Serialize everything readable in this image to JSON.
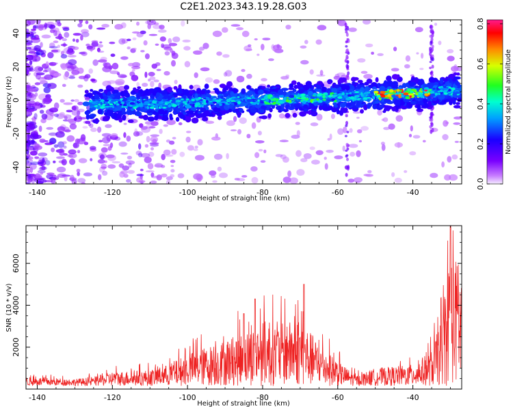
{
  "title": "C2E1.2023.343.19.28.G03",
  "colors": {
    "snr_line": "#ee2222",
    "axis": "#000000"
  },
  "chart_data": [
    {
      "type": "heatmap",
      "title": "C2E1.2023.343.19.28.G03",
      "xlabel": "Height of straight line (km)",
      "ylabel": "Frequency (Hz)",
      "xlim": [
        -143,
        -27
      ],
      "ylim": [
        -50,
        48
      ],
      "x_ticks": [
        -140,
        -120,
        -100,
        -80,
        -60,
        -40
      ],
      "y_ticks": [
        -40,
        -20,
        0,
        20,
        40
      ],
      "colormap": "rainbow (white/lavender at 0 → violet → blue → cyan → green → yellow → orange → red → magenta)",
      "colorbar": {
        "label": "Normalized spectral amplitude",
        "range": [
          0.0,
          0.82
        ],
        "ticks": [
          0.0,
          0.2,
          0.4,
          0.6,
          0.8
        ]
      },
      "ridge": [
        {
          "x": -126,
          "y": -3
        },
        {
          "x": -120,
          "y": -2
        },
        {
          "x": -110,
          "y": -2
        },
        {
          "x": -100,
          "y": -2
        },
        {
          "x": -90,
          "y": 0
        },
        {
          "x": -80,
          "y": 0
        },
        {
          "x": -70,
          "y": 1
        },
        {
          "x": -60,
          "y": 2
        },
        {
          "x": -50,
          "y": 3
        },
        {
          "x": -40,
          "y": 4
        },
        {
          "x": -28,
          "y": 6
        }
      ],
      "peak_region": {
        "x": [
          -50,
          -35
        ],
        "y": [
          3,
          5
        ],
        "amplitude": 0.8
      },
      "grid": false
    },
    {
      "type": "line",
      "xlabel": "Height of straight line (km)",
      "ylabel": "SNR (10 * v/v)",
      "xlim": [
        -143,
        -27
      ],
      "ylim": [
        0,
        7800
      ],
      "x_ticks": [
        -140,
        -120,
        -100,
        -80,
        -60,
        -40
      ],
      "y_ticks": [
        2000,
        4000,
        6000
      ],
      "envelope": [
        {
          "x": -143,
          "y": 500
        },
        {
          "x": -130,
          "y": 400
        },
        {
          "x": -125,
          "y": 500
        },
        {
          "x": -120,
          "y": 800
        },
        {
          "x": -110,
          "y": 900
        },
        {
          "x": -105,
          "y": 1200
        },
        {
          "x": -100,
          "y": 1800
        },
        {
          "x": -95,
          "y": 2200
        },
        {
          "x": -90,
          "y": 2600
        },
        {
          "x": -85,
          "y": 3000
        },
        {
          "x": -80,
          "y": 3600
        },
        {
          "x": -75,
          "y": 3500
        },
        {
          "x": -70,
          "y": 3800
        },
        {
          "x": -65,
          "y": 2400
        },
        {
          "x": -60,
          "y": 1400
        },
        {
          "x": -55,
          "y": 600
        },
        {
          "x": -50,
          "y": 1000
        },
        {
          "x": -45,
          "y": 1100
        },
        {
          "x": -40,
          "y": 1200
        },
        {
          "x": -35,
          "y": 2000
        },
        {
          "x": -32,
          "y": 4000
        },
        {
          "x": -30,
          "y": 7800
        },
        {
          "x": -27,
          "y": 6500
        }
      ],
      "notable_peaks": [
        {
          "x": -85,
          "y": 3600
        },
        {
          "x": -82,
          "y": 4300
        },
        {
          "x": -69,
          "y": 5000
        },
        {
          "x": -30,
          "y": 7800
        }
      ],
      "grid": false
    }
  ]
}
